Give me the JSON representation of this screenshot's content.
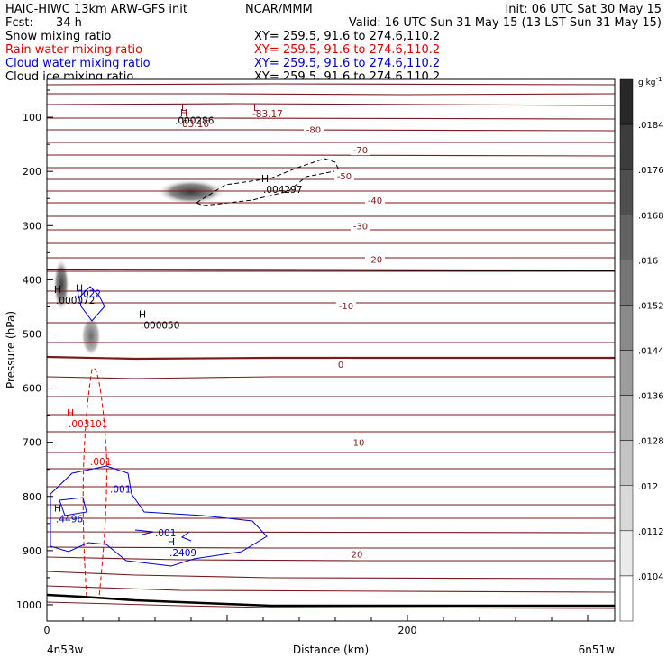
{
  "header": {
    "title_left": "HAIC-HIWC 13km ARW-GFS init",
    "org": "NCAR/MMM",
    "init": "Init: 06 UTC Sat 30 May 15",
    "fcst_label": "Fcst:",
    "fcst_value": "34 h",
    "valid": "Valid: 16 UTC Sun 31 May 15 (13 LST Sun 31 May 15)",
    "fields": [
      {
        "name": "Snow mixing ratio",
        "xy": "XY=  259.5,  91.6  to  274.6,110.2",
        "color": "#000000"
      },
      {
        "name": "Rain water mixing ratio",
        "xy": "XY=  259.5,  91.6  to  274.6,110.2",
        "color": "#e00000"
      },
      {
        "name": "Cloud water mixing ratio",
        "xy": "XY=  259.5,  91.6  to  274.6,110.2",
        "color": "#0000cc"
      },
      {
        "name": "Cloud ice mixing ratio",
        "xy": "XY=  259.5,  91.6  to  274.6,110.2",
        "color": "#000000"
      }
    ]
  },
  "chart_data": {
    "type": "contour",
    "xlabel": "Distance (km)",
    "ylabel": "Pressure (hPa)",
    "xlim": [
      0,
      315
    ],
    "ylim": [
      1030,
      30
    ],
    "x_ticks": [
      0,
      200
    ],
    "y_ticks": [
      100,
      200,
      300,
      400,
      500,
      600,
      700,
      800,
      900,
      1000
    ],
    "endpoint_left": "4n53w",
    "endpoint_right": "6n51w",
    "colorbar": {
      "unit": "g kg",
      "unit_exp": "-1",
      "labels": [
        ".0184",
        ".0176",
        ".0168",
        ".016",
        ".0152",
        ".0144",
        ".0136",
        ".0128",
        ".012",
        ".0112",
        ".0104"
      ]
    },
    "temperature_contours": [
      {
        "label": "-80",
        "x_km": 148,
        "p_hPa": 122
      },
      {
        "label": "-70",
        "x_km": 174,
        "p_hPa": 160
      },
      {
        "label": "-50",
        "x_km": 165,
        "p_hPa": 208
      },
      {
        "label": "-40",
        "x_km": 182,
        "p_hPa": 253
      },
      {
        "label": "-30",
        "x_km": 174,
        "p_hPa": 300
      },
      {
        "label": "-20",
        "x_km": 182,
        "p_hPa": 362
      },
      {
        "label": "-10",
        "x_km": 166,
        "p_hPa": 448
      },
      {
        "label": "0",
        "x_km": 163,
        "p_hPa": 556
      },
      {
        "label": "10",
        "x_km": 173,
        "p_hPa": 700
      },
      {
        "label": "20",
        "x_km": 172,
        "p_hPa": 906
      }
    ],
    "annotations": [
      {
        "marker": "L",
        "value": "",
        "x_km": 76,
        "p_hPa": 88,
        "color": "#8b1a1a"
      },
      {
        "marker": "L",
        "value": "",
        "x_km": 116,
        "p_hPa": 88,
        "color": "#8b1a1a"
      },
      {
        "marker": "H",
        "value": "83.16",
        "x_km": 76,
        "p_hPa": 98,
        "color": "#8b1a1a"
      },
      {
        "marker": "",
        "value": "-83.17",
        "x_km": 115,
        "p_hPa": 100,
        "color": "#8b1a1a"
      },
      {
        "marker": "",
        "value": ".000286",
        "x_km": 72,
        "p_hPa": 112,
        "color": "#000000"
      },
      {
        "marker": "H",
        "value": ".004297",
        "x_km": 121,
        "p_hPa": 220,
        "color": "#000000"
      },
      {
        "marker": "H",
        "value": ".000072",
        "x_km": 6,
        "p_hPa": 424,
        "color": "#000000"
      },
      {
        "marker": "H",
        "value": "",
        "x_km": 18,
        "p_hPa": 422,
        "color": "#0000cc"
      },
      {
        "marker": "",
        "value": ".0022",
        "x_km": 16,
        "p_hPa": 432,
        "color": "#0000cc"
      },
      {
        "marker": "H",
        "value": ".000050",
        "x_km": 53,
        "p_hPa": 470,
        "color": "#000000"
      },
      {
        "marker": "H",
        "value": ".003101",
        "x_km": 13,
        "p_hPa": 652,
        "color": "#e00000"
      },
      {
        "marker": "",
        "value": ".001",
        "x_km": 25,
        "p_hPa": 742,
        "color": "#e00000"
      },
      {
        "marker": "",
        "value": ".001",
        "x_km": 36,
        "p_hPa": 793,
        "color": "#0000cc"
      },
      {
        "marker": "H",
        "value": ".4496",
        "x_km": 6,
        "p_hPa": 828,
        "color": "#0000cc"
      },
      {
        "marker": "",
        "value": ".001",
        "x_km": 61,
        "p_hPa": 874,
        "color": "#0000cc"
      },
      {
        "marker": "H",
        "value": ".2409",
        "x_km": 69,
        "p_hPa": 890,
        "color": "#0000cc"
      }
    ]
  }
}
